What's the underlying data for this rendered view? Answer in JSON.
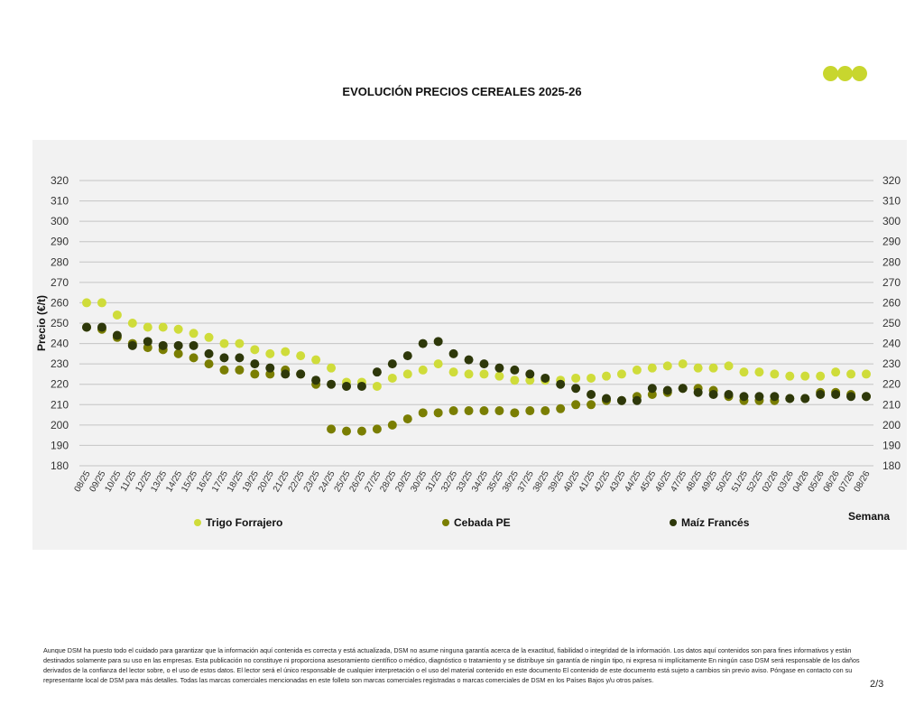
{
  "chart_data": {
    "type": "scatter",
    "title": "EVOLUCIÓN PRECIOS CEREALES 2025-26",
    "ylabel": "Precio (€/t)",
    "xlabel": "Semana",
    "ylim": [
      180,
      320
    ],
    "yticks": [
      180,
      190,
      200,
      210,
      220,
      230,
      240,
      250,
      260,
      270,
      280,
      290,
      300,
      310,
      320
    ],
    "grid": true,
    "legend_position": "bottom",
    "categories": [
      "08/25",
      "09/25",
      "10/25",
      "11/25",
      "12/25",
      "13/25",
      "14/25",
      "15/25",
      "16/25",
      "17/25",
      "18/25",
      "19/25",
      "20/25",
      "21/25",
      "22/25",
      "23/25",
      "24/25",
      "25/25",
      "26/25",
      "27/25",
      "28/25",
      "29/25",
      "30/25",
      "31/25",
      "32/25",
      "33/25",
      "34/25",
      "35/25",
      "36/25",
      "37/25",
      "38/25",
      "39/25",
      "40/25",
      "41/25",
      "42/25",
      "43/25",
      "44/25",
      "45/25",
      "46/25",
      "47/25",
      "48/25",
      "49/25",
      "50/25",
      "51/25",
      "52/25",
      "02/26",
      "03/26",
      "04/26",
      "05/26",
      "06/26",
      "07/26",
      "08/26"
    ],
    "series": [
      {
        "name": "Trigo Forrajero",
        "color": "#cfdc3a",
        "values": [
          260,
          260,
          254,
          250,
          248,
          248,
          247,
          245,
          243,
          240,
          240,
          237,
          235,
          236,
          234,
          232,
          228,
          221,
          221,
          219,
          223,
          225,
          227,
          230,
          226,
          225,
          225,
          224,
          222,
          222,
          222,
          222,
          223,
          223,
          224,
          225,
          227,
          228,
          229,
          230,
          228,
          228,
          229,
          226,
          226,
          225,
          224,
          224,
          224,
          226,
          225,
          225
        ]
      },
      {
        "name": "Cebada PE",
        "color": "#7a7e02",
        "values": [
          248,
          247,
          243,
          240,
          238,
          237,
          235,
          233,
          230,
          227,
          227,
          225,
          225,
          227,
          225,
          220,
          198,
          197,
          197,
          198,
          200,
          203,
          206,
          206,
          207,
          207,
          207,
          207,
          206,
          207,
          207,
          208,
          210,
          210,
          212,
          212,
          214,
          215,
          216,
          218,
          218,
          217,
          214,
          212,
          212,
          212,
          213,
          213,
          216,
          216,
          215,
          214
        ]
      },
      {
        "name": "Maíz Francés",
        "color": "#2e380a",
        "values": [
          248,
          248,
          244,
          239,
          241,
          239,
          239,
          239,
          235,
          233,
          233,
          230,
          228,
          225,
          225,
          222,
          220,
          219,
          219,
          226,
          230,
          234,
          240,
          241,
          235,
          232,
          230,
          228,
          227,
          225,
          223,
          220,
          218,
          215,
          213,
          212,
          212,
          218,
          217,
          218,
          216,
          215,
          215,
          214,
          214,
          214,
          213,
          213,
          215,
          215,
          214,
          214
        ]
      }
    ]
  },
  "logo_colors": [
    "#c8d62e"
  ],
  "footer": {
    "disclaimer": "Aunque DSM ha puesto todo el cuidado para garantizar que la información aquí contenida es correcta y está actualizada, DSM no asume ninguna garantía acerca de la exactitud, fiabilidad o integridad de la información. Los datos aquí contenidos son para fines informativos y están destinados solamente para su uso en las empresas. Esta publicación no constituye ni proporciona asesoramiento científico o médico, diagnóstico o tratamiento y se distribuye sin garantía de ningún tipo, ni expresa ni implícitamente En ningún caso DSM será responsable de los daños derivados de la confianza del lector sobre, o el uso de estos datos. El lector será el único responsable de cualquier interpretación o el uso del material contenido en este documento El contenido de este documento está sujeto a cambios sin previo aviso. Póngase en contacto con su representante local de DSM para más detalles. Todas las marcas comerciales mencionadas en este folleto son marcas comerciales registradas o marcas comerciales de DSM en los Países Bajos y/u otros países.",
    "page": "2/3"
  }
}
